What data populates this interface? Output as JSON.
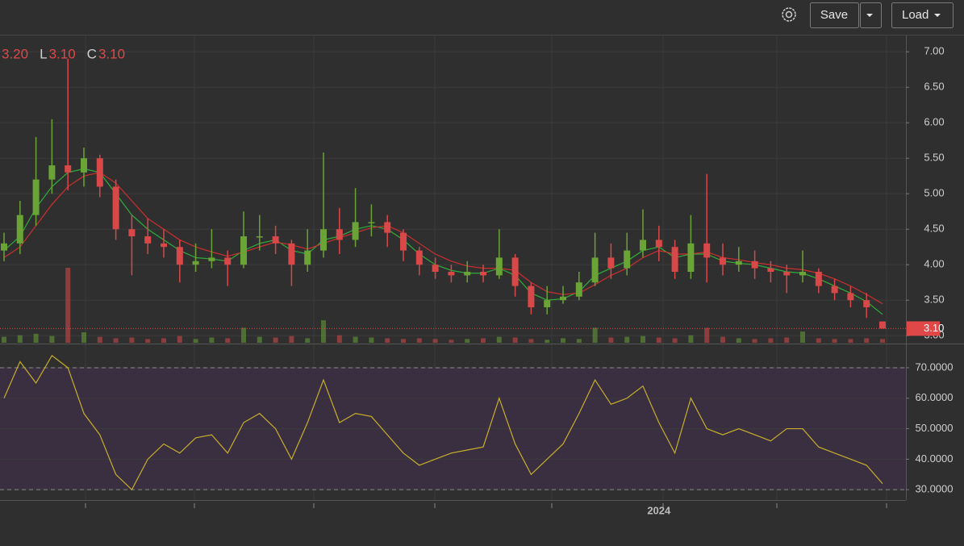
{
  "toolbar": {
    "save": "Save",
    "load": "Load"
  },
  "chart_data": [
    {
      "type": "candlestick",
      "legend": [
        {
          "value": "3.20"
        },
        {
          "label": "L",
          "value": "3.10"
        },
        {
          "label": "C",
          "value": "3.10"
        }
      ],
      "categories": [
        null,
        null,
        null,
        null,
        null,
        null,
        null,
        null,
        null,
        null,
        null,
        null,
        null,
        null,
        null,
        null,
        null,
        null,
        null,
        null,
        null,
        null,
        null,
        null,
        null,
        null,
        null,
        null,
        null,
        null,
        null,
        null,
        null,
        null,
        null,
        null,
        null,
        null,
        null,
        null,
        null,
        "2024",
        null,
        null,
        null,
        null,
        null,
        null,
        null,
        null,
        null,
        null,
        null,
        null,
        null,
        null
      ],
      "open": [
        4.2,
        4.3,
        4.7,
        5.2,
        5.4,
        5.3,
        5.5,
        5.1,
        4.5,
        4.4,
        4.3,
        4.25,
        4.0,
        4.05,
        4.1,
        4.0,
        4.4,
        4.4,
        4.3,
        4.0,
        4.2,
        4.5,
        4.35,
        4.6,
        4.6,
        4.45,
        4.2,
        4.0,
        3.9,
        3.85,
        3.9,
        3.85,
        4.1,
        3.7,
        3.4,
        3.5,
        3.55,
        3.75,
        4.1,
        3.95,
        4.2,
        4.35,
        4.25,
        3.9,
        4.3,
        4.1,
        4.0,
        4.05,
        3.95,
        3.9,
        3.85,
        3.9,
        3.7,
        3.6,
        3.5,
        3.2
      ],
      "high": [
        4.45,
        4.9,
        5.8,
        6.05,
        6.9,
        5.65,
        5.55,
        5.2,
        4.7,
        4.65,
        4.5,
        4.35,
        4.3,
        4.5,
        4.2,
        4.75,
        4.7,
        4.55,
        4.35,
        4.5,
        5.58,
        4.8,
        5.08,
        4.85,
        4.7,
        4.5,
        4.25,
        4.1,
        4.0,
        4.05,
        4.0,
        4.5,
        4.15,
        3.75,
        3.7,
        3.7,
        3.9,
        4.45,
        4.3,
        4.45,
        4.78,
        4.55,
        4.35,
        4.7,
        5.28,
        4.3,
        4.25,
        4.2,
        4.05,
        4.0,
        4.2,
        3.95,
        3.8,
        3.7,
        3.6,
        3.2
      ],
      "low": [
        4.05,
        4.15,
        4.55,
        5.0,
        5.05,
        5.1,
        4.95,
        4.35,
        3.85,
        4.15,
        4.1,
        3.75,
        3.9,
        3.95,
        3.7,
        3.95,
        4.2,
        4.15,
        3.7,
        3.9,
        4.1,
        4.15,
        4.25,
        4.4,
        4.25,
        4.05,
        3.85,
        3.8,
        3.75,
        3.75,
        3.75,
        3.8,
        3.55,
        3.3,
        3.3,
        3.45,
        3.5,
        3.7,
        3.8,
        3.85,
        4.1,
        4.05,
        3.8,
        3.8,
        3.75,
        3.85,
        3.9,
        3.8,
        3.75,
        3.6,
        3.75,
        3.6,
        3.5,
        3.4,
        3.25,
        3.1
      ],
      "close": [
        4.3,
        4.7,
        5.2,
        5.4,
        5.3,
        5.5,
        5.1,
        4.5,
        4.4,
        4.3,
        4.25,
        4.0,
        4.05,
        4.1,
        4.0,
        4.4,
        4.4,
        4.3,
        4.0,
        4.2,
        4.5,
        4.35,
        4.6,
        4.6,
        4.45,
        4.2,
        4.0,
        3.9,
        3.85,
        3.9,
        3.85,
        4.1,
        3.7,
        3.4,
        3.5,
        3.55,
        3.75,
        4.1,
        3.95,
        4.2,
        4.35,
        4.25,
        3.9,
        4.3,
        4.1,
        4.0,
        4.05,
        3.95,
        3.9,
        3.85,
        3.9,
        3.7,
        3.6,
        3.5,
        3.4,
        3.1
      ],
      "volume": [
        8,
        10,
        12,
        9,
        100,
        14,
        8,
        6,
        7,
        5,
        6,
        9,
        5,
        7,
        6,
        20,
        8,
        7,
        9,
        6,
        30,
        10,
        8,
        7,
        6,
        5,
        6,
        5,
        4,
        5,
        6,
        8,
        7,
        5,
        4,
        6,
        5,
        20,
        7,
        8,
        9,
        7,
        6,
        10,
        20,
        8,
        6,
        5,
        6,
        7,
        15,
        6,
        5,
        5,
        6,
        5
      ],
      "vlim": [
        0,
        100
      ],
      "up_color": "#6aa336",
      "down_color": "#d84848",
      "ma": [
        {
          "color": "#2fae3a",
          "values": [
            4.2,
            4.4,
            4.8,
            5.1,
            5.3,
            5.35,
            5.3,
            5.0,
            4.7,
            4.5,
            4.35,
            4.2,
            4.1,
            4.08,
            4.05,
            4.2,
            4.3,
            4.35,
            4.2,
            4.15,
            4.35,
            4.4,
            4.5,
            4.55,
            4.5,
            4.35,
            4.15,
            4.0,
            3.92,
            3.88,
            3.88,
            3.95,
            3.85,
            3.6,
            3.5,
            3.52,
            3.62,
            3.85,
            3.95,
            4.05,
            4.2,
            4.25,
            4.1,
            4.15,
            4.15,
            4.05,
            4.02,
            4.0,
            3.95,
            3.9,
            3.88,
            3.8,
            3.7,
            3.6,
            3.48,
            3.3
          ]
        },
        {
          "color": "#cf2e2e",
          "values": [
            4.1,
            4.25,
            4.55,
            4.85,
            5.1,
            5.25,
            5.3,
            5.15,
            4.9,
            4.65,
            4.5,
            4.35,
            4.25,
            4.18,
            4.12,
            4.18,
            4.25,
            4.32,
            4.28,
            4.22,
            4.3,
            4.38,
            4.45,
            4.52,
            4.55,
            4.45,
            4.3,
            4.15,
            4.05,
            3.98,
            3.95,
            3.95,
            3.92,
            3.75,
            3.62,
            3.58,
            3.6,
            3.72,
            3.85,
            3.95,
            4.1,
            4.2,
            4.15,
            4.15,
            4.18,
            4.1,
            4.07,
            4.03,
            4.0,
            3.95,
            3.93,
            3.88,
            3.8,
            3.7,
            3.58,
            3.45
          ]
        }
      ],
      "last_price": {
        "value": 3.1,
        "label": "3.10"
      },
      "ylim": [
        2.9,
        7.23
      ],
      "yticks": [
        {
          "value": 3,
          "label": "3.00"
        },
        {
          "value": 3.5,
          "label": "3.50"
        },
        {
          "value": 4,
          "label": "4.00"
        },
        {
          "value": 4.5,
          "label": "4.50"
        },
        {
          "value": 5,
          "label": "5.00"
        },
        {
          "value": 5.5,
          "label": "5.50"
        },
        {
          "value": 6,
          "label": "6.00"
        },
        {
          "value": 6.5,
          "label": "6.50"
        },
        {
          "value": 7,
          "label": "7.00"
        }
      ],
      "grid": true
    },
    {
      "type": "line",
      "color": "#c8ae2a",
      "values": [
        60,
        72,
        65,
        74,
        70,
        55,
        48,
        35,
        30,
        40,
        45,
        42,
        47,
        48,
        42,
        52,
        55,
        50,
        40,
        52,
        66,
        52,
        55,
        54,
        48,
        42,
        38,
        40,
        42,
        43,
        44,
        60,
        45,
        35,
        40,
        45,
        55,
        66,
        58,
        60,
        64,
        52,
        42,
        60,
        50,
        48,
        50,
        48,
        46,
        50,
        50,
        44,
        42,
        40,
        38,
        32
      ],
      "bands": [
        30,
        70
      ],
      "band_color": "#3a2f41",
      "ylim": [
        26.6,
        77.4
      ],
      "yticks": [
        {
          "value": 30,
          "label": "30.0000"
        },
        {
          "value": 40,
          "label": "40.0000"
        },
        {
          "value": 50,
          "label": "50.0000"
        },
        {
          "value": 60,
          "label": "60.0000"
        },
        {
          "value": 70,
          "label": "70.0000"
        }
      ],
      "grid": true
    }
  ]
}
